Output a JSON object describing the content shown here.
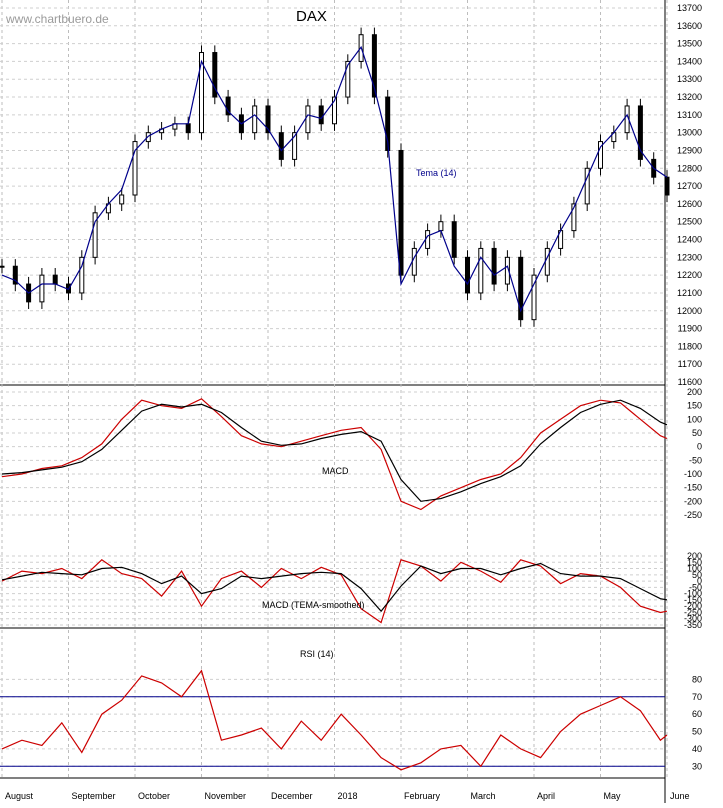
{
  "header": {
    "watermark": "www.chartbuero.de",
    "title": "DAX"
  },
  "chart_data": [
    {
      "type": "line",
      "title": "DAX",
      "subtype": "candlestick",
      "ylim": [
        11600,
        13700
      ],
      "y_ticks": [
        11600,
        11700,
        11800,
        11900,
        12000,
        12100,
        12200,
        12300,
        12400,
        12500,
        12600,
        12700,
        12800,
        12900,
        13000,
        13100,
        13200,
        13300,
        13400,
        13500,
        13600,
        13700
      ],
      "x_months": [
        "August",
        "September",
        "October",
        "November",
        "December",
        "2018",
        "February",
        "March",
        "April",
        "May",
        "June"
      ],
      "grid": true,
      "series": [
        {
          "name": "DAX",
          "type": "candlestick",
          "color": "#000000",
          "x": [
            0,
            0.2,
            0.4,
            0.6,
            0.8,
            1.0,
            1.2,
            1.4,
            1.6,
            1.8,
            2.0,
            2.2,
            2.4,
            2.6,
            2.8,
            3.0,
            3.2,
            3.4,
            3.6,
            3.8,
            4.0,
            4.2,
            4.4,
            4.6,
            4.8,
            5.0,
            5.2,
            5.4,
            5.6,
            5.8,
            6.0,
            6.2,
            6.4,
            6.6,
            6.8,
            7.0,
            7.2,
            7.4,
            7.6,
            7.8,
            8.0,
            8.2,
            8.4,
            8.6,
            8.8,
            9.0,
            9.2,
            9.4,
            9.6,
            9.8,
            10.0
          ],
          "close": [
            12250,
            12150,
            12050,
            12200,
            12150,
            12100,
            12300,
            12550,
            12600,
            12650,
            12950,
            13000,
            13020,
            13050,
            13000,
            13450,
            13200,
            13100,
            13000,
            13150,
            13000,
            12850,
            13000,
            13150,
            13050,
            13200,
            13400,
            13550,
            13200,
            12900,
            12200,
            12350,
            12450,
            12500,
            12300,
            12100,
            12350,
            12150,
            12300,
            11950,
            12200,
            12350,
            12450,
            12600,
            12800,
            12950,
            13000,
            13150,
            12850,
            12750,
            12650
          ]
        },
        {
          "name": "Tema (14)",
          "type": "line",
          "color": "#00008b",
          "x": [
            0,
            0.2,
            0.4,
            0.6,
            0.8,
            1.0,
            1.2,
            1.4,
            1.6,
            1.8,
            2.0,
            2.2,
            2.4,
            2.6,
            2.8,
            3.0,
            3.2,
            3.4,
            3.6,
            3.8,
            4.0,
            4.2,
            4.4,
            4.6,
            4.8,
            5.0,
            5.2,
            5.4,
            5.6,
            5.8,
            6.0,
            6.2,
            6.4,
            6.6,
            6.8,
            7.0,
            7.2,
            7.4,
            7.6,
            7.8,
            8.0,
            8.2,
            8.4,
            8.6,
            8.8,
            9.0,
            9.2,
            9.4,
            9.6,
            9.8,
            10.0
          ],
          "values": [
            12200,
            12170,
            12100,
            12150,
            12150,
            12120,
            12250,
            12500,
            12600,
            12680,
            12900,
            12980,
            13020,
            13050,
            13050,
            13400,
            13250,
            13120,
            13050,
            13100,
            13020,
            12900,
            12980,
            13100,
            13080,
            13180,
            13380,
            13480,
            13250,
            12950,
            12150,
            12300,
            12420,
            12450,
            12250,
            12150,
            12300,
            12200,
            12250,
            12000,
            12150,
            12300,
            12450,
            12580,
            12750,
            12920,
            13000,
            13100,
            12900,
            12800,
            12750
          ]
        }
      ],
      "annotations": [
        "Tema (14)"
      ]
    },
    {
      "type": "line",
      "title": "MACD",
      "ylim": [
        -250,
        200
      ],
      "y_ticks": [
        -250,
        -200,
        -150,
        -100,
        -50,
        0,
        50,
        100,
        150,
        200
      ],
      "series": [
        {
          "name": "MACD",
          "color": "#cc0000",
          "x": [
            0,
            0.3,
            0.6,
            0.9,
            1.2,
            1.5,
            1.8,
            2.1,
            2.4,
            2.7,
            3.0,
            3.3,
            3.6,
            3.9,
            4.2,
            4.5,
            4.8,
            5.1,
            5.4,
            5.7,
            6.0,
            6.3,
            6.6,
            6.9,
            7.2,
            7.5,
            7.8,
            8.1,
            8.4,
            8.7,
            9.0,
            9.3,
            9.6,
            9.9,
            10.0
          ],
          "values": [
            -110,
            -100,
            -80,
            -70,
            -40,
            10,
            100,
            170,
            150,
            140,
            175,
            110,
            40,
            10,
            0,
            20,
            40,
            60,
            70,
            -10,
            -200,
            -230,
            -180,
            -150,
            -120,
            -100,
            -40,
            50,
            100,
            150,
            170,
            160,
            100,
            40,
            30
          ]
        },
        {
          "name": "Signal",
          "color": "#000000",
          "x": [
            0,
            0.3,
            0.6,
            0.9,
            1.2,
            1.5,
            1.8,
            2.1,
            2.4,
            2.7,
            3.0,
            3.3,
            3.6,
            3.9,
            4.2,
            4.5,
            4.8,
            5.1,
            5.4,
            5.7,
            6.0,
            6.3,
            6.6,
            6.9,
            7.2,
            7.5,
            7.8,
            8.1,
            8.4,
            8.7,
            9.0,
            9.3,
            9.6,
            9.9,
            10.0
          ],
          "values": [
            -100,
            -95,
            -85,
            -75,
            -55,
            -10,
            60,
            130,
            155,
            145,
            155,
            125,
            70,
            20,
            5,
            10,
            30,
            45,
            55,
            20,
            -120,
            -200,
            -190,
            -165,
            -135,
            -110,
            -70,
            10,
            70,
            125,
            155,
            170,
            140,
            90,
            80
          ]
        }
      ],
      "annotations": [
        "MACD"
      ]
    },
    {
      "type": "line",
      "title": "MACD (TEMA-smoothed)",
      "ylim": [
        -350,
        200
      ],
      "y_ticks": [
        -350,
        -300,
        -250,
        -200,
        -150,
        -100,
        -50,
        0,
        50,
        100,
        150,
        200
      ],
      "series": [
        {
          "name": "MACD (TEMA-smoothed)",
          "color": "#cc0000",
          "x": [
            0,
            0.3,
            0.6,
            0.9,
            1.2,
            1.5,
            1.8,
            2.1,
            2.4,
            2.7,
            3.0,
            3.3,
            3.6,
            3.9,
            4.2,
            4.5,
            4.8,
            5.1,
            5.4,
            5.7,
            6.0,
            6.3,
            6.6,
            6.9,
            7.2,
            7.5,
            7.8,
            8.1,
            8.4,
            8.7,
            9.0,
            9.3,
            9.6,
            9.9,
            10.0
          ],
          "values": [
            0,
            80,
            60,
            100,
            20,
            170,
            60,
            20,
            -120,
            80,
            -200,
            20,
            80,
            -50,
            100,
            20,
            110,
            50,
            -220,
            -330,
            170,
            120,
            0,
            150,
            80,
            -10,
            170,
            120,
            -20,
            60,
            40,
            -50,
            -200,
            -250,
            -240
          ]
        },
        {
          "name": "Signal",
          "color": "#000000",
          "x": [
            0,
            0.3,
            0.6,
            0.9,
            1.2,
            1.5,
            1.8,
            2.1,
            2.4,
            2.7,
            3.0,
            3.3,
            3.6,
            3.9,
            4.2,
            4.5,
            4.8,
            5.1,
            5.4,
            5.7,
            6.0,
            6.3,
            6.6,
            6.9,
            7.2,
            7.5,
            7.8,
            8.1,
            8.4,
            8.7,
            9.0,
            9.3,
            9.6,
            9.9,
            10.0
          ],
          "values": [
            10,
            40,
            70,
            60,
            50,
            100,
            110,
            60,
            -20,
            40,
            -100,
            -60,
            40,
            20,
            40,
            60,
            70,
            60,
            -60,
            -240,
            -40,
            120,
            60,
            100,
            100,
            50,
            100,
            140,
            60,
            40,
            40,
            20,
            -60,
            -140,
            -150
          ]
        }
      ],
      "annotations": [
        "MACD (TEMA-smoothed)"
      ]
    },
    {
      "type": "line",
      "title": "RSI (14)",
      "ylim": [
        25,
        90
      ],
      "y_ticks": [
        30,
        40,
        50,
        60,
        70,
        80
      ],
      "reference_lines": [
        30,
        70
      ],
      "series": [
        {
          "name": "RSI (14)",
          "color": "#cc0000",
          "x": [
            0,
            0.3,
            0.6,
            0.9,
            1.2,
            1.5,
            1.8,
            2.1,
            2.4,
            2.7,
            3.0,
            3.3,
            3.6,
            3.9,
            4.2,
            4.5,
            4.8,
            5.1,
            5.4,
            5.7,
            6.0,
            6.3,
            6.6,
            6.9,
            7.2,
            7.5,
            7.8,
            8.1,
            8.4,
            8.7,
            9.0,
            9.3,
            9.6,
            9.9,
            10.0
          ],
          "values": [
            40,
            45,
            42,
            55,
            38,
            60,
            68,
            82,
            78,
            70,
            85,
            45,
            48,
            52,
            40,
            56,
            45,
            60,
            48,
            35,
            28,
            32,
            40,
            42,
            30,
            48,
            40,
            35,
            50,
            60,
            65,
            70,
            62,
            45,
            48
          ]
        }
      ],
      "annotations": [
        "RSI (14)"
      ]
    }
  ]
}
